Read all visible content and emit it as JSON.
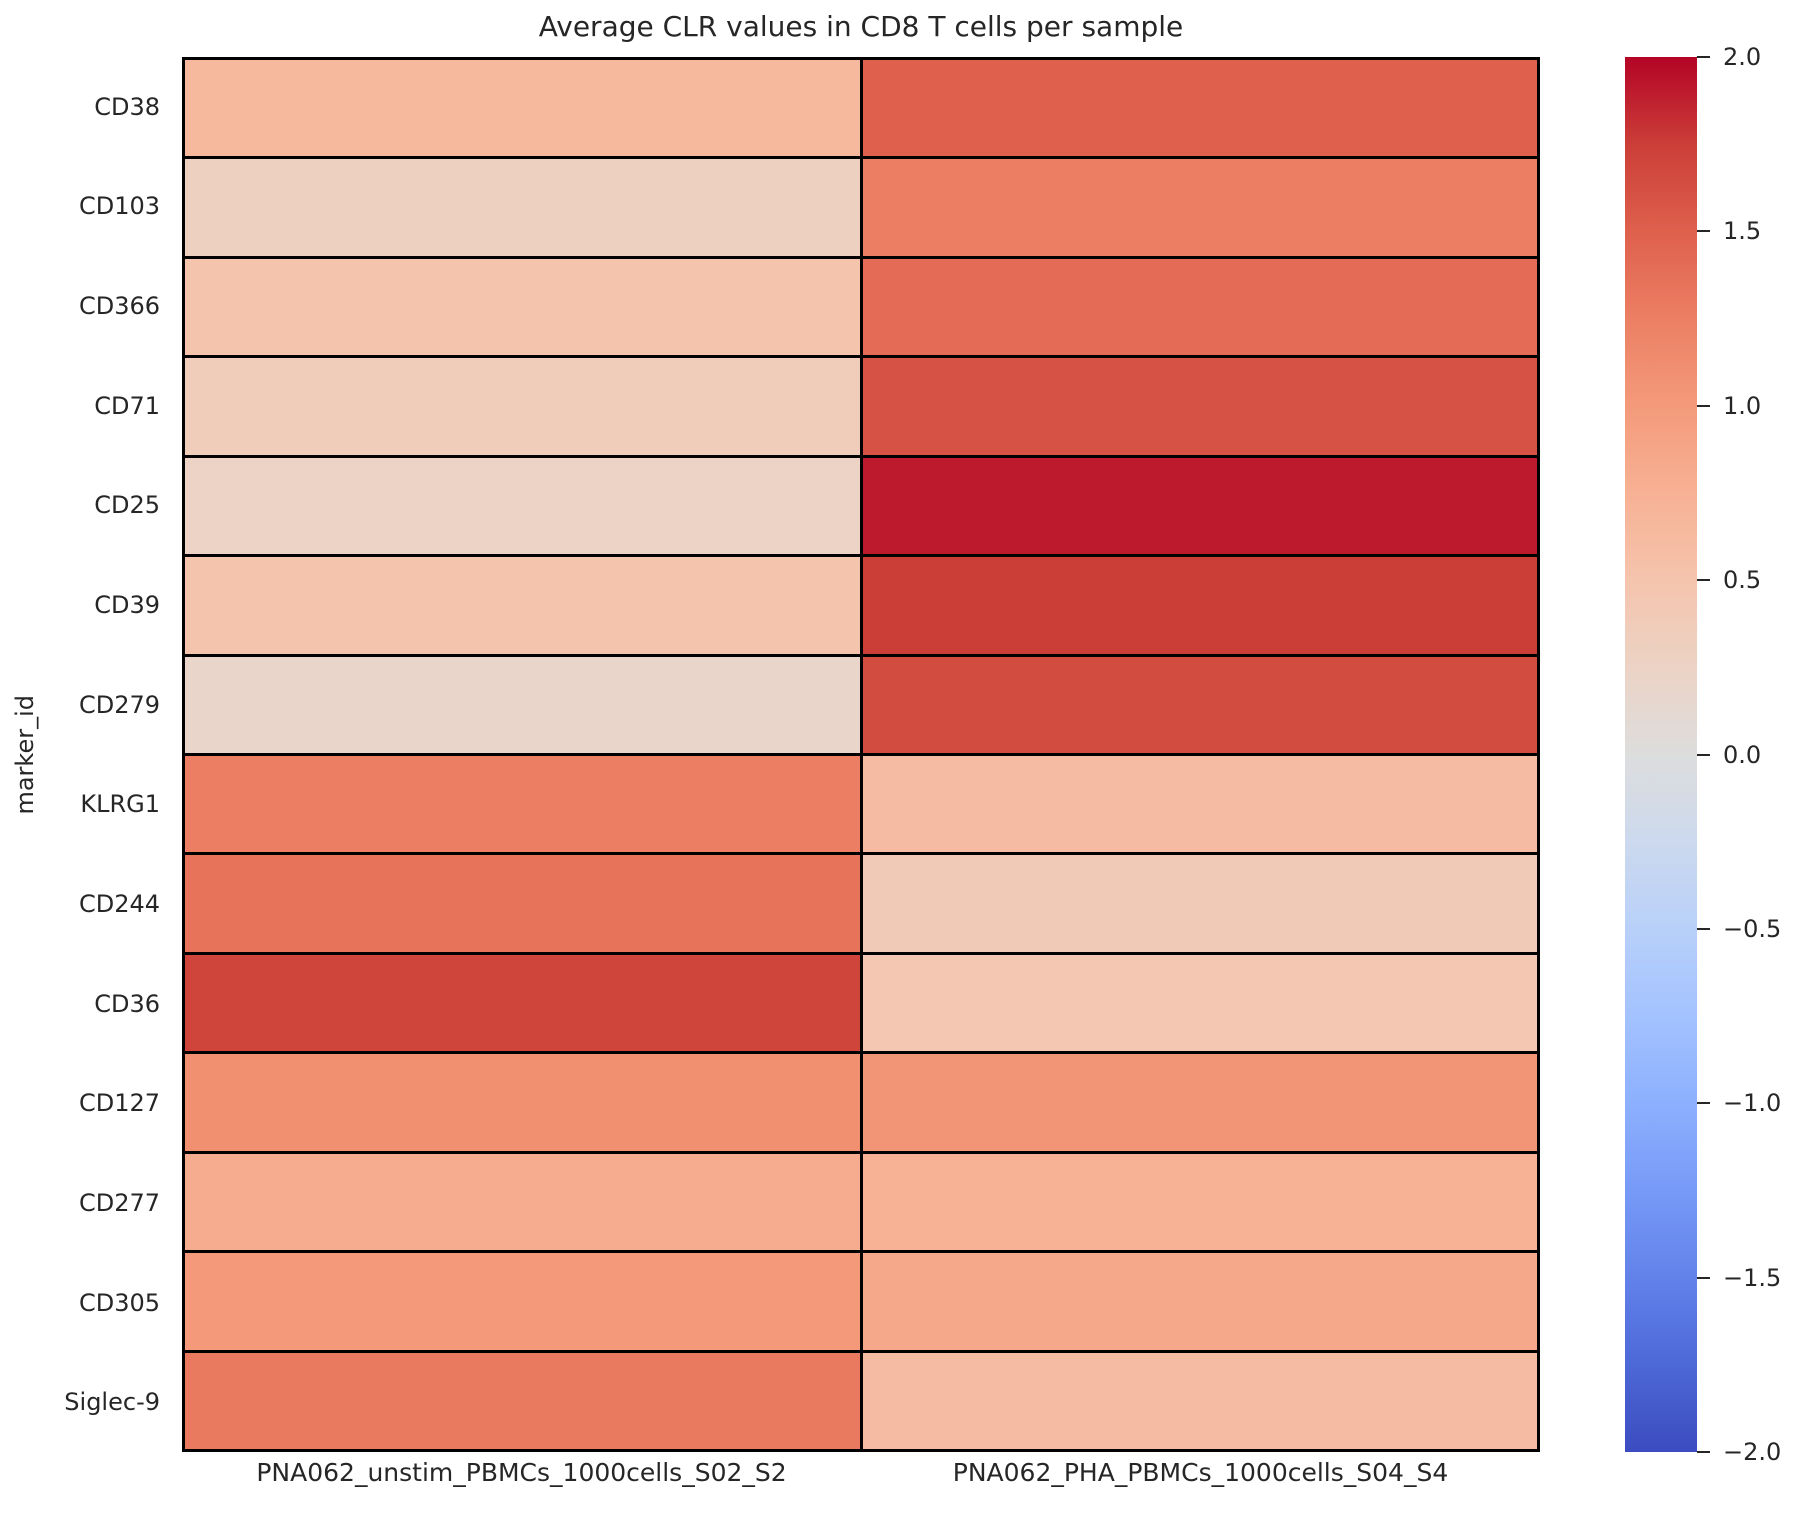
{
  "chart_data": {
    "type": "heatmap",
    "title": "Average CLR values in CD8 T cells per sample",
    "xlabel": "",
    "ylabel": "marker_id",
    "rows": [
      "CD38",
      "CD103",
      "CD366",
      "CD71",
      "CD25",
      "CD39",
      "CD279",
      "KLRG1",
      "CD244",
      "CD36",
      "CD127",
      "CD277",
      "CD305",
      "Siglec-9"
    ],
    "columns": [
      "PNA062_unstim_PBMCs_1000cells_S02_S2",
      "PNA062_PHA_PBMCs_1000cells_S04_S4"
    ],
    "values": [
      [
        0.65,
        1.5
      ],
      [
        0.3,
        1.25
      ],
      [
        0.5,
        1.4
      ],
      [
        0.35,
        1.6
      ],
      [
        0.25,
        1.9
      ],
      [
        0.5,
        1.75
      ],
      [
        0.2,
        1.65
      ],
      [
        1.25,
        0.6
      ],
      [
        1.35,
        0.4
      ],
      [
        1.7,
        0.45
      ],
      [
        1.1,
        1.05
      ],
      [
        0.8,
        0.75
      ],
      [
        1.0,
        0.85
      ],
      [
        1.3,
        0.6
      ]
    ],
    "vmin": -2.0,
    "vmax": 2.0,
    "colormap": "coolwarm",
    "grid_line_color": "#000000",
    "background_color": "#ffffff",
    "text_color": "#262626",
    "legend_position": "right-colorbar",
    "grid": false,
    "colorbar": {
      "tick_values": [
        2.0,
        1.5,
        1.0,
        0.5,
        0.0,
        -0.5,
        -1.0,
        -1.5,
        -2.0
      ],
      "tick_labels": [
        "2.0",
        "1.5",
        "1.0",
        "0.5",
        "0.0",
        "−0.5",
        "−1.0",
        "−1.5",
        "−2.0"
      ],
      "top_color": "#b40426",
      "mid_color": "#dddddd",
      "bottom_color": "#3b4cc0"
    }
  }
}
